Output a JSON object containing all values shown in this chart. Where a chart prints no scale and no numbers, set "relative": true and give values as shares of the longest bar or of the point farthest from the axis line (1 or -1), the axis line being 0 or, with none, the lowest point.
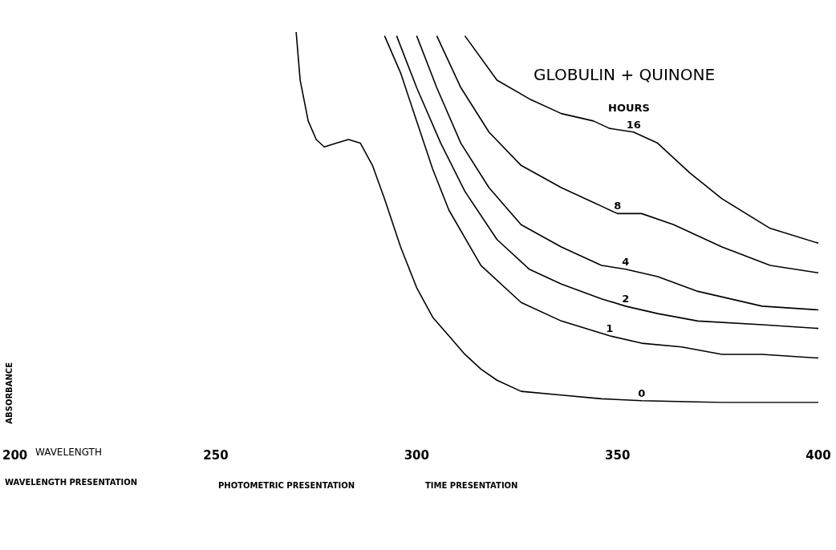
{
  "chart_data": {
    "type": "line",
    "relative": true,
    "title": "GLOBULIN + QUINONE",
    "legend_title": "HOURS",
    "xlabel": "WAVELENGTH",
    "ylabel": "ABSORBANCE",
    "xlim": [
      200,
      400
    ],
    "xticks": [
      200,
      250,
      300,
      350,
      400
    ],
    "grid": false,
    "legend": false,
    "marker": "none",
    "line_style": "solid",
    "annotations": [
      "WAVELENGTH PRESENTATION",
      "PHOTOMETRIC PRESENTATION",
      "TIME PRESENTATION"
    ],
    "series": [
      {
        "name": "0",
        "color": "#000000",
        "x": [
          270,
          271,
          273,
          275,
          277,
          280,
          283,
          286,
          289,
          292,
          296,
          300,
          304,
          308,
          312,
          316,
          320,
          326,
          336,
          346,
          356,
          376,
          400
        ],
        "values": [
          1,
          0.87,
          0.76,
          0.71,
          0.69,
          0.7,
          0.71,
          0.7,
          0.64,
          0.55,
          0.42,
          0.31,
          0.23,
          0.18,
          0.13,
          0.09,
          0.06,
          0.03,
          0.02,
          0.01,
          0.005,
          0,
          0
        ]
      },
      {
        "name": "1",
        "color": "#000000",
        "x": [
          292,
          296,
          300,
          304,
          308,
          316,
          326,
          336,
          348,
          356,
          366,
          376,
          386,
          400
        ],
        "values": [
          0.99,
          0.89,
          0.76,
          0.63,
          0.52,
          0.37,
          0.27,
          0.22,
          0.18,
          0.16,
          0.15,
          0.13,
          0.13,
          0.12
        ]
      },
      {
        "name": "2",
        "color": "#000000",
        "x": [
          295,
          300,
          306,
          312,
          320,
          328,
          336,
          346,
          352,
          360,
          370,
          386,
          400
        ],
        "values": [
          0.99,
          0.85,
          0.7,
          0.57,
          0.44,
          0.36,
          0.32,
          0.28,
          0.26,
          0.24,
          0.22,
          0.21,
          0.2
        ]
      },
      {
        "name": "4",
        "color": "#000000",
        "x": [
          300,
          305,
          311,
          318,
          326,
          336,
          346,
          352,
          360,
          370,
          386,
          400
        ],
        "values": [
          0.99,
          0.85,
          0.7,
          0.58,
          0.48,
          0.42,
          0.37,
          0.36,
          0.34,
          0.3,
          0.26,
          0.25
        ]
      },
      {
        "name": "8",
        "color": "#000000",
        "x": [
          305,
          311,
          318,
          326,
          336,
          346,
          350,
          356,
          364,
          376,
          388,
          400
        ],
        "values": [
          0.99,
          0.85,
          0.73,
          0.64,
          0.58,
          0.53,
          0.51,
          0.51,
          0.48,
          0.42,
          0.37,
          0.35
        ]
      },
      {
        "name": "16",
        "color": "#000000",
        "x": [
          312,
          320,
          328,
          336,
          344,
          348,
          354,
          360,
          368,
          376,
          388,
          400
        ],
        "values": [
          0.99,
          0.87,
          0.82,
          0.78,
          0.76,
          0.74,
          0.73,
          0.7,
          0.62,
          0.55,
          0.47,
          0.43
        ]
      }
    ]
  }
}
